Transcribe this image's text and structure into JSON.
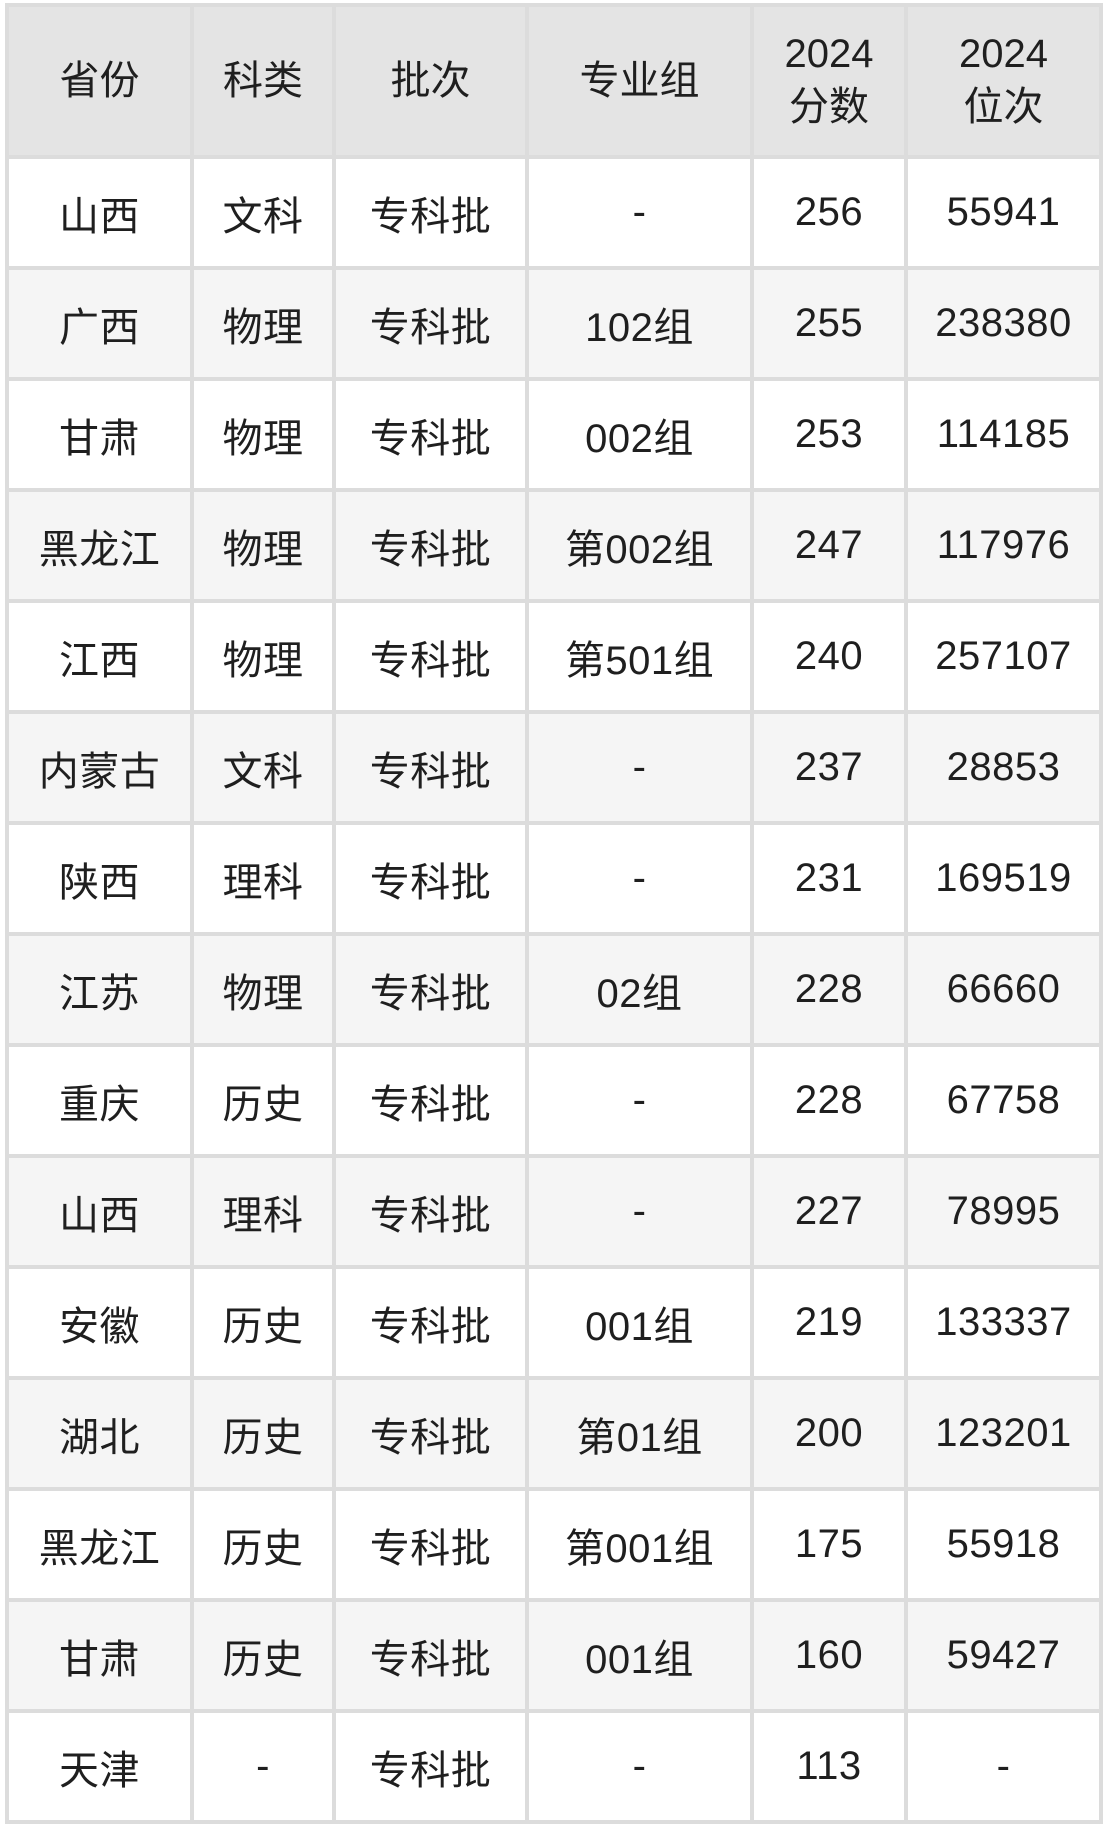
{
  "colors": {
    "page_background": "#ffffff",
    "grid_line": "#dcdcdc",
    "header_background": "#e4e4e4",
    "row_odd_background": "#ffffff",
    "row_even_background": "#f5f5f5",
    "text": "#1f1f1f"
  },
  "chart_data": {
    "type": "table",
    "title": "",
    "columns": [
      {
        "key": "province",
        "label": "省份"
      },
      {
        "key": "category",
        "label": "科类"
      },
      {
        "key": "batch",
        "label": "批次"
      },
      {
        "key": "major-group",
        "label": "专业组"
      },
      {
        "key": "score-2024",
        "label": "2024\n分数"
      },
      {
        "key": "rank-2024",
        "label": "2024\n位次"
      }
    ],
    "rows": [
      [
        "山西",
        "文科",
        "专科批",
        "-",
        "256",
        "55941"
      ],
      [
        "广西",
        "物理",
        "专科批",
        "102组",
        "255",
        "238380"
      ],
      [
        "甘肃",
        "物理",
        "专科批",
        "002组",
        "253",
        "114185"
      ],
      [
        "黑龙江",
        "物理",
        "专科批",
        "第002组",
        "247",
        "117976"
      ],
      [
        "江西",
        "物理",
        "专科批",
        "第501组",
        "240",
        "257107"
      ],
      [
        "内蒙古",
        "文科",
        "专科批",
        "-",
        "237",
        "28853"
      ],
      [
        "陕西",
        "理科",
        "专科批",
        "-",
        "231",
        "169519"
      ],
      [
        "江苏",
        "物理",
        "专科批",
        "02组",
        "228",
        "66660"
      ],
      [
        "重庆",
        "历史",
        "专科批",
        "-",
        "228",
        "67758"
      ],
      [
        "山西",
        "理科",
        "专科批",
        "-",
        "227",
        "78995"
      ],
      [
        "安徽",
        "历史",
        "专科批",
        "001组",
        "219",
        "133337"
      ],
      [
        "湖北",
        "历史",
        "专科批",
        "第01组",
        "200",
        "123201"
      ],
      [
        "黑龙江",
        "历史",
        "专科批",
        "第001组",
        "175",
        "55918"
      ],
      [
        "甘肃",
        "历史",
        "专科批",
        "001组",
        "160",
        "59427"
      ],
      [
        "天津",
        "-",
        "专科批",
        "-",
        "113",
        "-"
      ]
    ]
  }
}
